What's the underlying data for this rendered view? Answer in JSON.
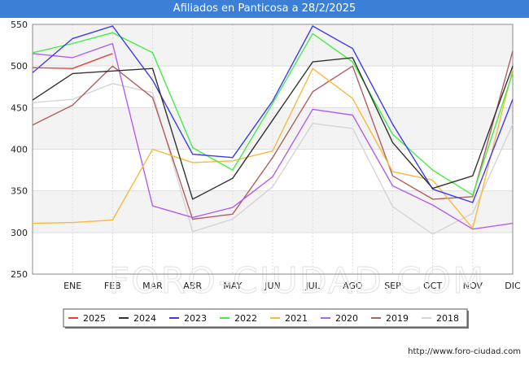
{
  "header": {
    "title": "Afiliados en Panticosa a 28/2/2025"
  },
  "footer": {
    "url": "http://www.foro-ciudad.com"
  },
  "watermark": "FORO-CIUDAD.COM",
  "chart_data": {
    "type": "line",
    "title": "Afiliados en Panticosa a 28/2/2025",
    "xlabel": "",
    "ylabel": "",
    "categories": [
      "",
      "ENE",
      "FEB",
      "MAR",
      "ABR",
      "MAY",
      "JUN",
      "JUL",
      "AGO",
      "SEP",
      "OCT",
      "NOV",
      "DIC"
    ],
    "ylim": [
      250,
      550
    ],
    "yticks": [
      250,
      300,
      350,
      400,
      450,
      500,
      550
    ],
    "grid": true,
    "legend_position": "bottom",
    "series": [
      {
        "name": "2025",
        "color": "#e8403a",
        "values": [
          498,
          497,
          515,
          null,
          null,
          null,
          null,
          null,
          null,
          null,
          null,
          null,
          null
        ]
      },
      {
        "name": "2024",
        "color": "#333333",
        "values": [
          459,
          491,
          494,
          497,
          340,
          365,
          435,
          505,
          510,
          408,
          353,
          368,
          500
        ]
      },
      {
        "name": "2023",
        "color": "#3b3bf0",
        "values": [
          492,
          533,
          548,
          483,
          394,
          390,
          458,
          548,
          521,
          430,
          352,
          336,
          460
        ]
      },
      {
        "name": "2022",
        "color": "#44ee44",
        "values": [
          516,
          527,
          540,
          516,
          402,
          375,
          455,
          539,
          505,
          418,
          375,
          345,
          492
        ]
      },
      {
        "name": "2021",
        "color": "#f8b93c",
        "values": [
          311,
          312,
          315,
          400,
          384,
          386,
          398,
          497,
          461,
          373,
          363,
          305,
          496
        ]
      },
      {
        "name": "2020",
        "color": "#b05ff0",
        "values": [
          515,
          510,
          527,
          332,
          318,
          330,
          367,
          448,
          441,
          356,
          333,
          304,
          311
        ]
      },
      {
        "name": "2019",
        "color": "#b06060",
        "values": [
          429,
          453,
          500,
          462,
          316,
          322,
          390,
          469,
          500,
          368,
          340,
          343,
          518
        ]
      },
      {
        "name": "2018",
        "color": "#d4d4d4",
        "values": [
          456,
          460,
          479,
          468,
          301,
          316,
          355,
          431,
          425,
          331,
          298,
          323,
          430
        ]
      }
    ]
  }
}
